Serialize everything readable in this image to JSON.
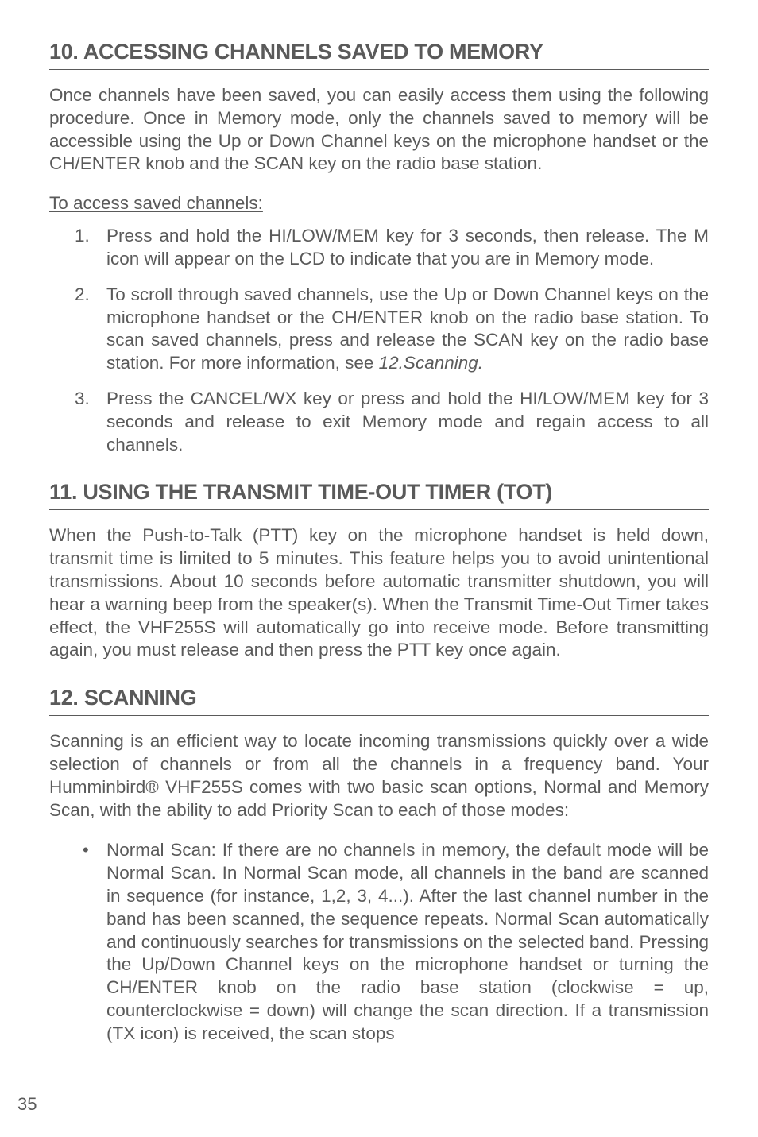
{
  "section10": {
    "heading": "10. ACCESSING CHANNELS SAVED TO MEMORY",
    "intro": "Once channels have been saved, you can easily access them using the following procedure. Once in Memory mode, only the channels saved to memory will be accessible using the Up or Down Channel keys on the microphone handset or the CH/ENTER knob and the SCAN key on the radio base station.",
    "subhead": "To access saved channels:",
    "steps": [
      "Press and hold the HI/LOW/MEM key for 3 seconds, then release. The M icon will appear on the LCD to indicate that you are in Memory mode.",
      "To scroll through saved channels, use the Up or Down Channel keys on the microphone handset or the CH/ENTER knob on the radio base station. To scan saved channels, press and release the SCAN key on the radio base station. For more information, see ",
      "Press the CANCEL/WX key or press and hold the HI/LOW/MEM key for 3 seconds and release to exit Memory mode and regain access to all channels."
    ],
    "step2_ref": "12.Scanning."
  },
  "section11": {
    "heading": "11. USING THE TRANSMIT TIME-OUT TIMER (TOT)",
    "para": "When the Push-to-Talk (PTT) key on the microphone handset is held down, transmit time is limited to 5 minutes. This feature helps you to avoid unintentional transmissions. About 10 seconds before automatic transmitter shutdown, you will hear a warning beep from the speaker(s). When the Transmit Time-Out Timer takes effect, the VHF255S will automatically go into receive mode. Before transmitting again, you must release and then press the PTT key once again."
  },
  "section12": {
    "heading": "12. SCANNING",
    "intro": "Scanning is an efficient way to locate incoming transmissions quickly over a wide selection of channels or from all the channels in a frequency band. Your Humminbird® VHF255S comes with two basic scan options, Normal and Memory Scan, with the ability to add Priority Scan to each of those modes:",
    "bullet_label": "Normal Scan:",
    "bullet_text": " If there are no channels in memory, the default mode will be Normal Scan. In Normal Scan mode, all channels in the band are scanned in sequence (for instance, 1,2, 3, 4...). After the last channel number in the band has been scanned, the sequence repeats. Normal Scan automatically and continuously searches for transmissions on the selected band. Pressing the Up/Down Channel keys on the microphone handset or turning the CH/ENTER knob on the radio base station (clockwise = up, counterclockwise = down) will change the scan direction. If a transmission (TX icon) is received, the scan stops"
  },
  "page_number": "35"
}
